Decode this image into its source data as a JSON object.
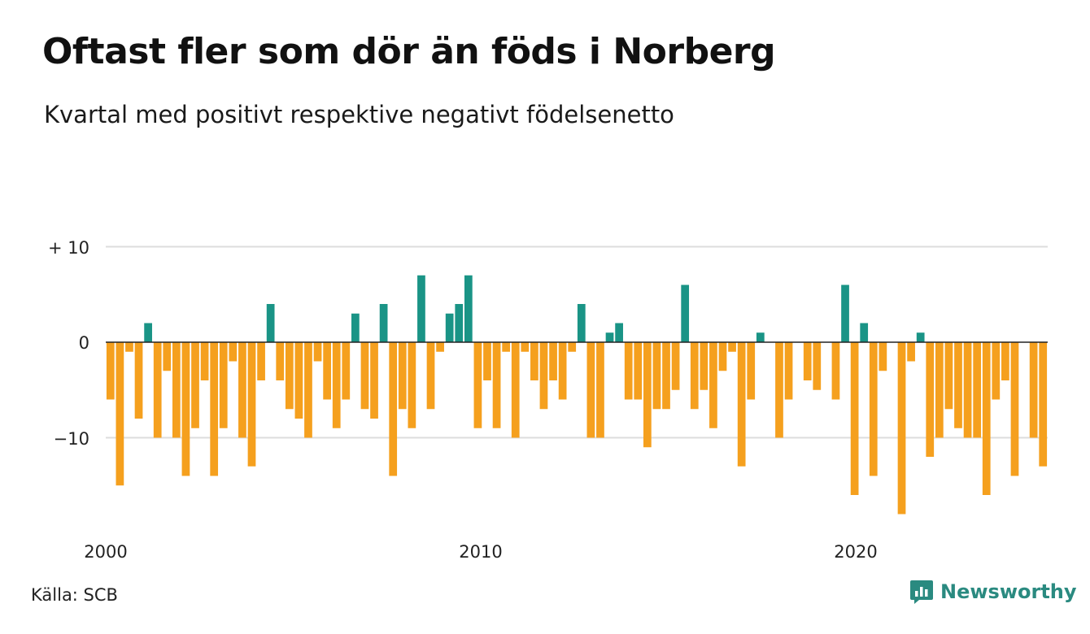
{
  "title": "Oftast fler som dör än föds i Norberg",
  "subtitle": "Kvartal med positivt respektive negativt födelsenetto",
  "source": "Källa: SCB",
  "brand": "Newsworthy",
  "colors": {
    "positive": "#1a9486",
    "negative": "#f5a01e",
    "grid": "#dddddd",
    "brand": "#2a8a80"
  },
  "chart_data": {
    "type": "bar",
    "title": "Oftast fler som dör än föds i Norberg",
    "subtitle": "Kvartal med positivt respektive negativt födelsenetto",
    "x_start": "2000 Q1",
    "x_end": "2024 Q4",
    "x_tick_labels": [
      "2000",
      "2010",
      "2020"
    ],
    "y_tick_labels": [
      "+ 10",
      "0",
      "−10"
    ],
    "ylim": [
      -18,
      10
    ],
    "grid": true,
    "values": [
      -6,
      -15,
      -1,
      -8,
      2,
      -10,
      -3,
      -10,
      -14,
      -9,
      -4,
      -14,
      -9,
      -2,
      -10,
      -13,
      -4,
      4,
      -4,
      -7,
      -8,
      -10,
      -2,
      -6,
      -9,
      -6,
      3,
      -7,
      -8,
      4,
      -14,
      -7,
      -9,
      7,
      -7,
      -1,
      3,
      4,
      7,
      -9,
      -4,
      -9,
      -1,
      -10,
      -1,
      -4,
      -7,
      -4,
      -6,
      -1,
      4,
      -10,
      -10,
      1,
      2,
      -6,
      -6,
      -11,
      -7,
      -7,
      -5,
      6,
      -7,
      -5,
      -9,
      -3,
      -1,
      -13,
      -6,
      1,
      0,
      -10,
      -6,
      0,
      -4,
      -5,
      0,
      -6,
      6,
      -16,
      2,
      -14,
      -3,
      0,
      -18,
      -2,
      1,
      -12,
      -10,
      -7,
      -9,
      -10,
      -10,
      -16,
      -6,
      -4,
      -14,
      0,
      -10,
      -13
    ]
  }
}
